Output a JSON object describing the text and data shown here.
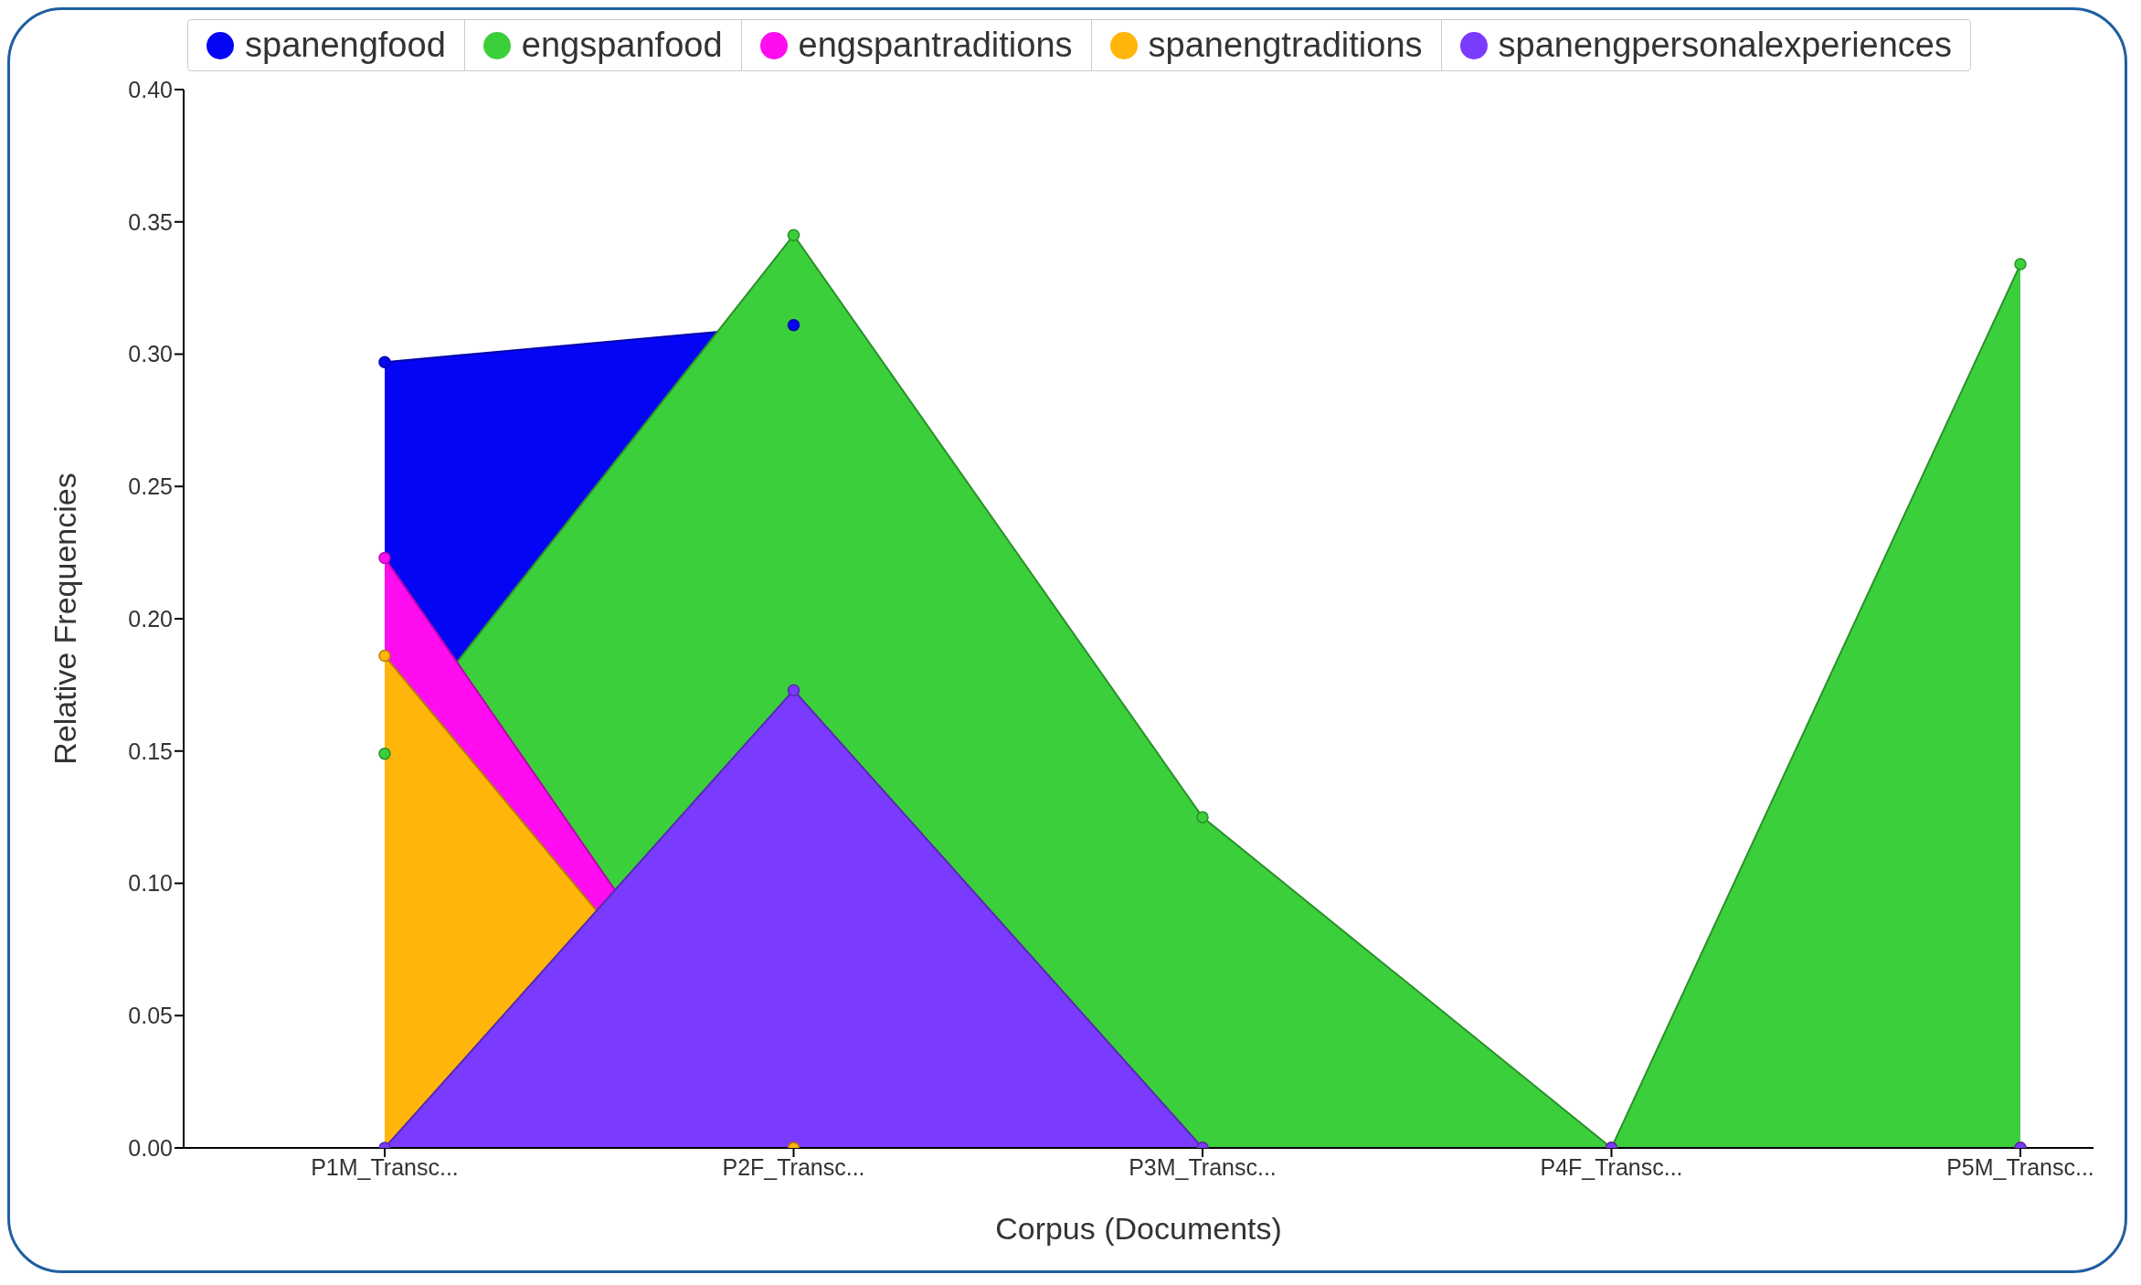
{
  "chart_data": {
    "type": "area",
    "xlabel": "Corpus (Documents)",
    "ylabel": "Relative Frequencies",
    "categories": [
      "P1M_Transc...",
      "P2F_Transc...",
      "P3M_Transc...",
      "P4F_Transc...",
      "P5M_Transc..."
    ],
    "series": [
      {
        "name": "spanengfood",
        "color": "#0505f5",
        "values": [
          0.297,
          0.311,
          0,
          0,
          0
        ]
      },
      {
        "name": "engspanfood",
        "color": "#3ccf3c",
        "values": [
          0.149,
          0.345,
          0.125,
          0,
          0.334
        ]
      },
      {
        "name": "engspantraditions",
        "color": "#ff0cf0",
        "values": [
          0.223,
          0,
          0,
          0,
          0
        ]
      },
      {
        "name": "spanengtraditions",
        "color": "#ffb50a",
        "values": [
          0.186,
          0,
          0,
          0,
          0
        ]
      },
      {
        "name": "spanengpersonalexperiences",
        "color": "#7b3bff",
        "values": [
          0,
          0.173,
          0,
          0,
          0
        ]
      }
    ],
    "ylim": [
      0,
      0.4
    ],
    "yticks": [
      {
        "value": 0,
        "label": "0.00"
      },
      {
        "value": 0.05,
        "label": "0.05"
      },
      {
        "value": 0.1,
        "label": "0.10"
      },
      {
        "value": 0.15,
        "label": "0.15"
      },
      {
        "value": 0.2,
        "label": "0.20"
      },
      {
        "value": 0.25,
        "label": "0.25"
      },
      {
        "value": 0.3,
        "label": "0.30"
      },
      {
        "value": 0.35,
        "label": "0.35"
      },
      {
        "value": 0.4,
        "label": "0.40"
      }
    ],
    "grid": false,
    "legend": "top",
    "marker": "circle"
  }
}
